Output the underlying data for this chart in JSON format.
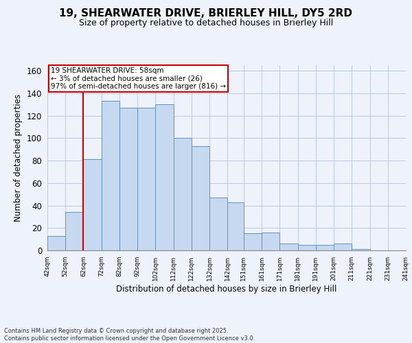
{
  "title_line1": "19, SHEARWATER DRIVE, BRIERLEY HILL, DY5 2RD",
  "title_line2": "Size of property relative to detached houses in Brierley Hill",
  "xlabel": "Distribution of detached houses by size in Brierley Hill",
  "ylabel": "Number of detached properties",
  "annotation_line1": "19 SHEARWATER DRIVE: 58sqm",
  "annotation_line2": "← 3% of detached houses are smaller (26)",
  "annotation_line3": "97% of semi-detached houses are larger (816) →",
  "footer_line1": "Contains HM Land Registry data © Crown copyright and database right 2025.",
  "footer_line2": "Contains public sector information licensed under the Open Government Licence v3.0.",
  "bar_edges": [
    42,
    52,
    62,
    72,
    82,
    92,
    102,
    112,
    122,
    132,
    142,
    151,
    161,
    171,
    181,
    191,
    201,
    211,
    221,
    231,
    241
  ],
  "bar_heights": [
    13,
    34,
    81,
    133,
    127,
    127,
    130,
    100,
    93,
    47,
    43,
    15,
    16,
    6,
    5,
    5,
    6,
    1,
    0,
    0,
    1
  ],
  "bar_color": "#c6d9f0",
  "bar_edge_color": "#6090c0",
  "property_line_x": 62,
  "annotation_box_color": "#cc0000",
  "ylim": [
    0,
    165
  ],
  "yticks": [
    0,
    20,
    40,
    60,
    80,
    100,
    120,
    140,
    160
  ],
  "background_color": "#eef2fb",
  "plot_background": "#eef2fb",
  "title_fontsize": 11,
  "subtitle_fontsize": 9,
  "ylabel_fontsize": 8.5,
  "xlabel_fontsize": 8.5,
  "ytick_fontsize": 8.5,
  "xtick_fontsize": 6.5,
  "footer_fontsize": 6,
  "annotation_fontsize": 7.5
}
